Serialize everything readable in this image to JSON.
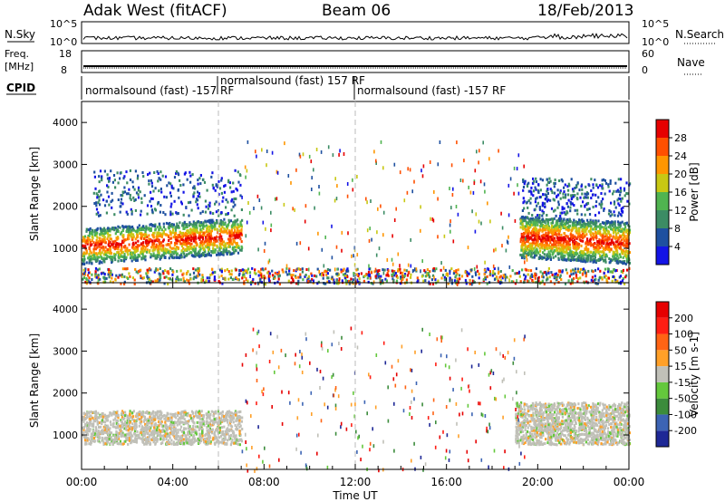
{
  "header": {
    "site": "Adak West (fitACF)",
    "beam": "Beam 06",
    "date": "18/Feb/2013"
  },
  "top_panels": {
    "nsky_label": "N.Sky",
    "nsky_ticks": [
      "10^5",
      "10^0"
    ],
    "nsearch_label": "N.Search",
    "nsearch_ticks": [
      "10^5",
      "10^0"
    ],
    "freq_label_1": "Freq.",
    "freq_label_2": "[MHz]",
    "freq_ticks": [
      "18",
      "8"
    ],
    "nave_label": "Nave",
    "nave_ticks": [
      "60",
      "0"
    ],
    "cpid_label": "CPID",
    "cpid_segments": [
      {
        "text": "normalsound (fast) -157 RF",
        "start_hour": 0
      },
      {
        "text": "normalsound (fast) 157 RF",
        "start_hour": 6
      },
      {
        "text": "normalsound (fast) -157 RF",
        "start_hour": 12
      }
    ]
  },
  "chart_data": [
    {
      "type": "heatmap",
      "name": "power",
      "ylabel": "Slant Range [km]",
      "xlabel": "Time UT",
      "x_ticks": [
        "00:00",
        "04:00",
        "08:00",
        "12:00",
        "16:00",
        "20:00",
        "00:00"
      ],
      "x_range_hours": [
        0,
        24
      ],
      "ylim": [
        180,
        4500
      ],
      "y_ticks": [
        1000,
        2000,
        3000,
        4000
      ],
      "colorbar": {
        "label": "Power [dB]",
        "ticks": [
          "4",
          "8",
          "12",
          "16",
          "20",
          "24",
          "28"
        ],
        "colors": [
          "#1414e6",
          "#1e50a0",
          "#3c8c64",
          "#50b450",
          "#c8c814",
          "#ff9600",
          "#ff5000",
          "#e60000"
        ]
      },
      "features": [
        {
          "kind": "band",
          "t0": 0.0,
          "t1": 7.0,
          "r0": 650,
          "r1": 1500,
          "peak": "red",
          "desc": "strong near-range scatter"
        },
        {
          "kind": "patch",
          "t0": 0.5,
          "t1": 7.0,
          "r0": 1800,
          "r1": 2900,
          "peak": "blue"
        },
        {
          "kind": "band",
          "t0": 19.2,
          "t1": 24.0,
          "r0": 800,
          "r1": 1800,
          "peak": "red"
        },
        {
          "kind": "patch",
          "t0": 19.3,
          "t1": 24.0,
          "r0": 1800,
          "r1": 2700,
          "peak": "blue"
        },
        {
          "kind": "ground",
          "t0": 0.0,
          "t1": 24.0,
          "r0": 180,
          "r1": 550
        }
      ]
    },
    {
      "type": "heatmap",
      "name": "velocity",
      "ylabel": "Slant Range [km]",
      "xlabel": "Time UT",
      "x_ticks": [
        "00:00",
        "04:00",
        "08:00",
        "12:00",
        "16:00",
        "20:00",
        "00:00"
      ],
      "x_range_hours": [
        0,
        24
      ],
      "ylim": [
        180,
        4500
      ],
      "y_ticks": [
        1000,
        2000,
        3000,
        4000
      ],
      "colorbar": {
        "label": "Velocity [m s-1]",
        "ticks": [
          "200",
          "100",
          "50",
          "15",
          "-15",
          "-50",
          "-100",
          "-200"
        ],
        "colors": [
          "#1e2896",
          "#3c64b4",
          "#3c8c3c",
          "#64c83c",
          "#c0c0b8",
          "#ffa028",
          "#ff6414",
          "#ff1e14",
          "#e60000"
        ]
      },
      "features": [
        {
          "kind": "band",
          "t0": 0.0,
          "t1": 7.0,
          "r0": 800,
          "r1": 1600,
          "value": "-15..15"
        },
        {
          "kind": "band",
          "t0": 19.0,
          "t1": 24.0,
          "r0": 800,
          "r1": 1800,
          "value": "-15..15"
        }
      ]
    }
  ],
  "xaxis_title": "Time UT"
}
